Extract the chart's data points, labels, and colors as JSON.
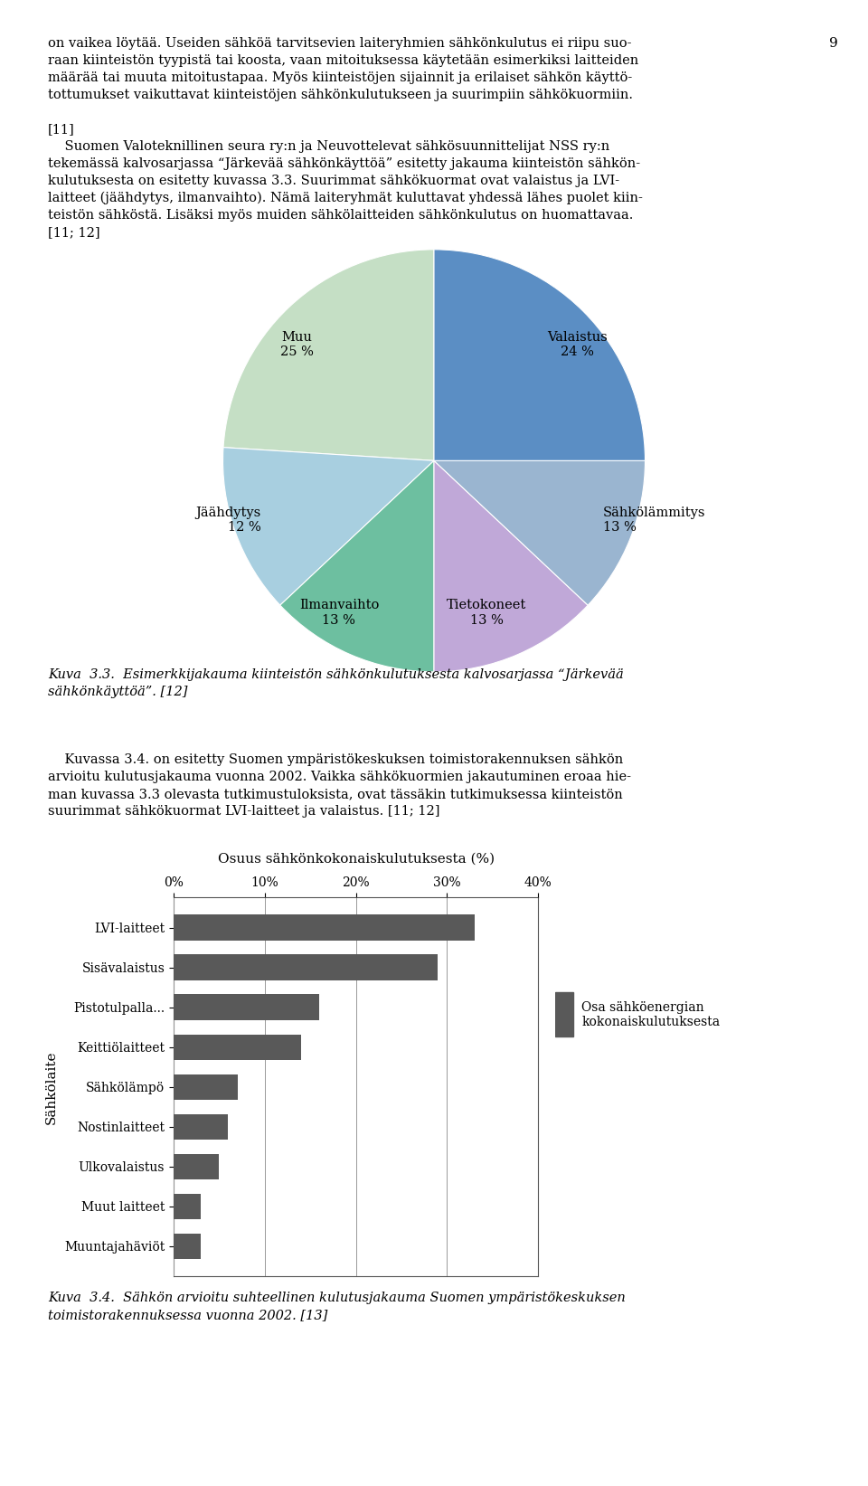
{
  "page_number": "9",
  "pie_labels": [
    "Valaistus",
    "Sähkölämmitys",
    "Tietokoneet",
    "Ilmanvaihto",
    "Jäähdytys",
    "Muu"
  ],
  "pie_values": [
    24,
    13,
    13,
    13,
    12,
    25
  ],
  "pie_colors": [
    "#c5dfc5",
    "#a8cfe0",
    "#6dbfa0",
    "#c0a8d8",
    "#9ab5d0",
    "#5b8ec4"
  ],
  "pie_startangle": 90,
  "bar_title": "Osuus sähkönkokonaiskulutuksesta (%)",
  "bar_categories": [
    "LVI-laitteet",
    "Sisävalaistus",
    "Pistotulpalla...",
    "Keittiölaitteet",
    "Sähkölämpö",
    "Nostinlaitteet",
    "Ulkovalaistus",
    "Muut laitteet",
    "Muuntajahäviöt"
  ],
  "bar_values": [
    33,
    29,
    16,
    14,
    7,
    6,
    5,
    3,
    3
  ],
  "bar_color": "#595959",
  "bar_ylabel": "Sähkölaite",
  "bar_xlim": [
    0,
    40
  ],
  "bar_xticks": [
    0,
    10,
    20,
    30,
    40
  ],
  "bar_xtick_labels": [
    "0%",
    "10%",
    "20%",
    "30%",
    "40%"
  ],
  "bar_legend_label": "Osa sähköenergian\nkokonaiskulutuksesta"
}
